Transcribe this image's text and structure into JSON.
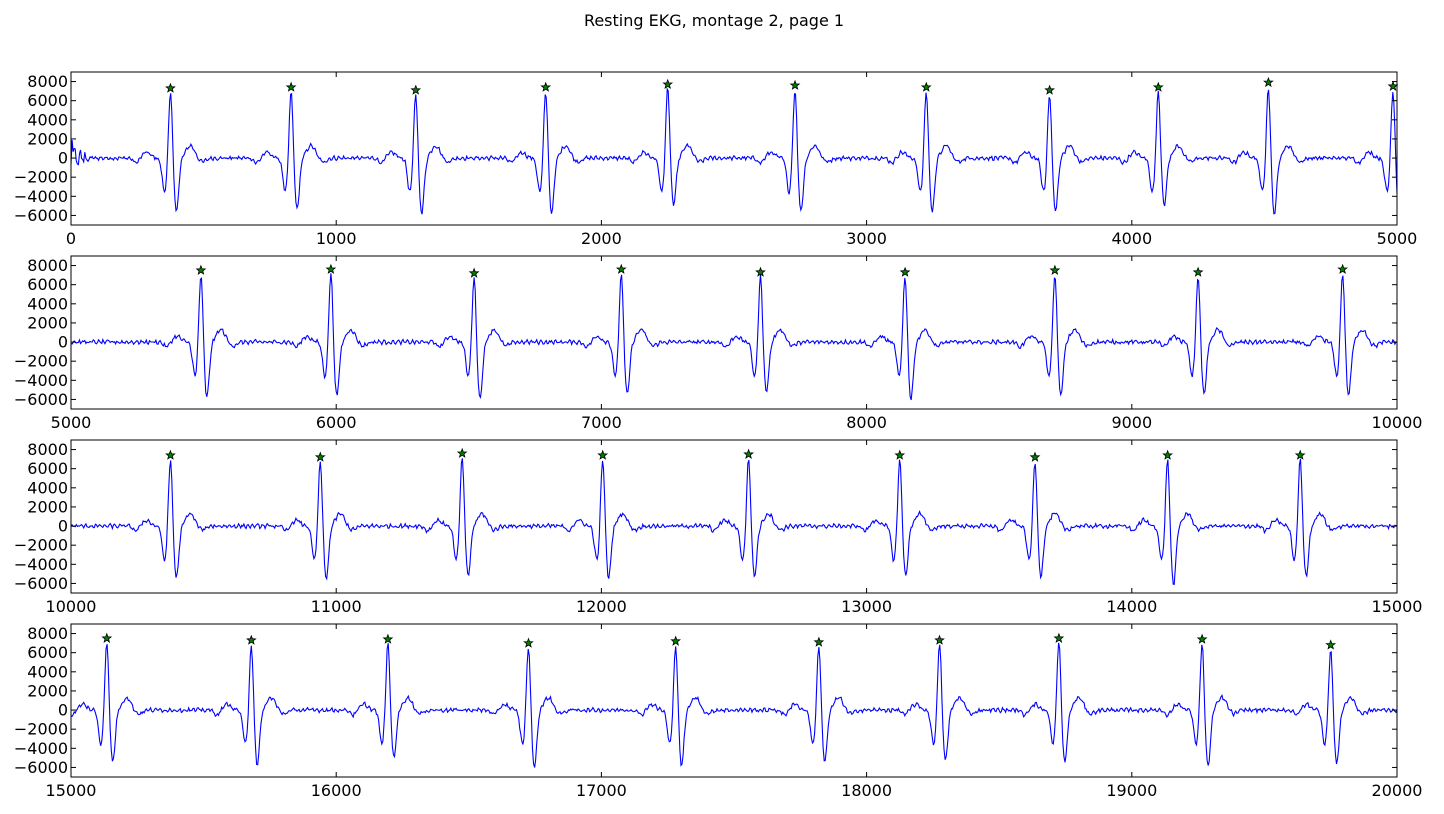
{
  "chart_data": [
    {
      "type": "line",
      "title": "Resting EKG, montage 2, page 1",
      "xlim": [
        0,
        5000
      ],
      "ylim": [
        -7000,
        9000
      ],
      "xticks": [
        "0",
        "1000",
        "2000",
        "3000",
        "4000",
        "5000"
      ],
      "yticks": [
        "8000",
        "6000",
        "4000",
        "2000",
        "0",
        "−2000",
        "−4000",
        "−6000"
      ],
      "series_color": "#0000ff",
      "marker_color": "#008000",
      "marker": "star",
      "peaks": [
        {
          "x": 375,
          "y": 7300
        },
        {
          "x": 830,
          "y": 7400
        },
        {
          "x": 1300,
          "y": 7100
        },
        {
          "x": 1790,
          "y": 7400
        },
        {
          "x": 2250,
          "y": 7700
        },
        {
          "x": 2730,
          "y": 7600
        },
        {
          "x": 3225,
          "y": 7400
        },
        {
          "x": 3690,
          "y": 7100
        },
        {
          "x": 4100,
          "y": 7400
        },
        {
          "x": 4515,
          "y": 7900
        },
        {
          "x": 4985,
          "y": 7500
        }
      ],
      "troughs": [
        -5900,
        -5700,
        -6200,
        -6100,
        -5300,
        -5900,
        -5900,
        -5900,
        -5200,
        -6200,
        -6300
      ]
    },
    {
      "type": "line",
      "xlim": [
        5000,
        10000
      ],
      "ylim": [
        -7000,
        9000
      ],
      "xticks": [
        "5000",
        "6000",
        "7000",
        "8000",
        "9000",
        "10000"
      ],
      "yticks": [
        "8000",
        "6000",
        "4000",
        "2000",
        "0",
        "−2000",
        "−4000",
        "−6000"
      ],
      "series_color": "#0000ff",
      "marker_color": "#008000",
      "marker": "star",
      "peaks": [
        {
          "x": 5490,
          "y": 7500
        },
        {
          "x": 5980,
          "y": 7600
        },
        {
          "x": 6520,
          "y": 7200
        },
        {
          "x": 7075,
          "y": 7600
        },
        {
          "x": 7600,
          "y": 7300
        },
        {
          "x": 8145,
          "y": 7300
        },
        {
          "x": 8710,
          "y": 7500
        },
        {
          "x": 9250,
          "y": 7300
        },
        {
          "x": 9795,
          "y": 7600
        }
      ],
      "troughs": [
        -6200,
        -6000,
        -6300,
        -5900,
        -5600,
        -6300,
        -6000,
        -5800,
        -5900
      ]
    },
    {
      "type": "line",
      "xlim": [
        10000,
        15000
      ],
      "ylim": [
        -7000,
        9000
      ],
      "xticks": [
        "10000",
        "11000",
        "12000",
        "13000",
        "14000",
        "15000"
      ],
      "yticks": [
        "8000",
        "6000",
        "4000",
        "2000",
        "0",
        "−2000",
        "−4000",
        "−6000"
      ],
      "series_color": "#0000ff",
      "marker_color": "#008000",
      "marker": "star",
      "peaks": [
        {
          "x": 10375,
          "y": 7400
        },
        {
          "x": 10940,
          "y": 7200
        },
        {
          "x": 11475,
          "y": 7600
        },
        {
          "x": 12005,
          "y": 7400
        },
        {
          "x": 12555,
          "y": 7500
        },
        {
          "x": 13125,
          "y": 7400
        },
        {
          "x": 13635,
          "y": 7200
        },
        {
          "x": 14135,
          "y": 7400
        },
        {
          "x": 14635,
          "y": 7400
        }
      ],
      "troughs": [
        -5800,
        -5900,
        -5600,
        -5800,
        -5600,
        -5500,
        -5600,
        -6500,
        -5600
      ]
    },
    {
      "type": "line",
      "xlim": [
        15000,
        20000
      ],
      "ylim": [
        -7000,
        9000
      ],
      "xticks": [
        "15000",
        "16000",
        "17000",
        "18000",
        "19000",
        "20000"
      ],
      "yticks": [
        "8000",
        "6000",
        "4000",
        "2000",
        "0",
        "−2000",
        "−4000",
        "−6000"
      ],
      "series_color": "#0000ff",
      "marker_color": "#008000",
      "marker": "star",
      "peaks": [
        {
          "x": 15135,
          "y": 7500
        },
        {
          "x": 15680,
          "y": 7300
        },
        {
          "x": 16195,
          "y": 7400
        },
        {
          "x": 16725,
          "y": 7000
        },
        {
          "x": 17280,
          "y": 7200
        },
        {
          "x": 17820,
          "y": 7100
        },
        {
          "x": 18275,
          "y": 7300
        },
        {
          "x": 18725,
          "y": 7500
        },
        {
          "x": 19265,
          "y": 7400
        },
        {
          "x": 19750,
          "y": 6800
        }
      ],
      "troughs": [
        -5800,
        -6100,
        -5300,
        -6400,
        -6200,
        -5700,
        -5600,
        -5800,
        -6300,
        -6000
      ]
    }
  ]
}
